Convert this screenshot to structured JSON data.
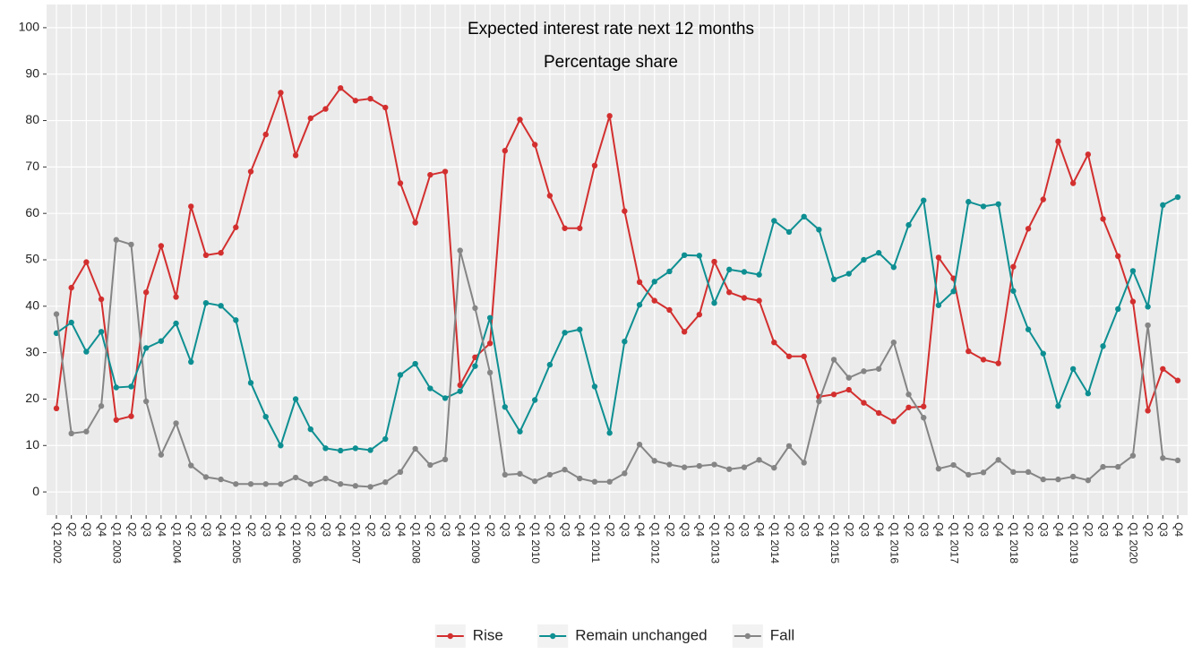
{
  "chart_data": {
    "type": "line",
    "title": "Expected interest rate next 12 months",
    "subtitle": "Percentage share",
    "categories": [
      "Q1 2002",
      "Q2",
      "Q3",
      "Q4",
      "Q1 2003",
      "Q2",
      "Q3",
      "Q4",
      "Q1 2004",
      "Q2",
      "Q3",
      "Q4",
      "Q1 2005",
      "Q2",
      "Q3",
      "Q4",
      "Q1 2006",
      "Q2",
      "Q3",
      "Q4",
      "Q1 2007",
      "Q2",
      "Q3",
      "Q4",
      "Q1 2008",
      "Q2",
      "Q3",
      "Q4",
      "Q1 2009",
      "Q2",
      "Q3",
      "Q4",
      "Q1 2010",
      "Q2",
      "Q3",
      "Q4",
      "Q1 2011",
      "Q2",
      "Q3",
      "Q4",
      "Q1 2012",
      "Q2",
      "Q3",
      "Q4",
      "Q1 2013",
      "Q2",
      "Q3",
      "Q4",
      "Q1 2014",
      "Q2",
      "Q3",
      "Q4",
      "Q1 2015",
      "Q2",
      "Q3",
      "Q4",
      "Q1 2016",
      "Q2",
      "Q3",
      "Q4",
      "Q1 2017",
      "Q2",
      "Q3",
      "Q4",
      "Q1 2018",
      "Q2",
      "Q3",
      "Q4",
      "Q1 2019",
      "Q2",
      "Q3",
      "Q4",
      "Q1 2020",
      "Q2",
      "Q3",
      "Q4"
    ],
    "series": [
      {
        "name": "Rise",
        "color": "#d32f2f",
        "values": [
          18,
          44,
          49.5,
          41.5,
          15.5,
          16.3,
          43,
          53,
          42,
          61.5,
          51,
          51.5,
          57,
          69,
          77,
          86,
          72.5,
          80.5,
          82.5,
          87,
          84.3,
          84.7,
          82.8,
          66.5,
          58,
          68.3,
          69,
          23,
          29,
          32,
          73.5,
          80.2,
          74.8,
          63.8,
          56.8,
          56.8,
          70.3,
          81,
          60.5,
          45.2,
          41.2,
          39.2,
          34.5,
          38.2,
          49.6,
          43,
          41.8,
          41.2,
          32.2,
          29.2,
          29.2,
          20.5,
          21,
          22,
          19.2,
          17,
          15.2,
          18.2,
          18.4,
          50.5,
          46,
          30.3,
          28.5,
          27.7,
          48.5,
          56.7,
          63,
          75.5,
          66.5,
          72.7,
          58.8,
          50.8,
          41,
          17.5,
          26.5,
          24
        ]
      },
      {
        "name": "Remain unchanged",
        "color": "#0e8f92",
        "values": [
          34.2,
          36.5,
          30.2,
          34.5,
          22.5,
          22.7,
          31,
          32.5,
          36.3,
          28,
          40.7,
          40.1,
          37,
          23.5,
          16.2,
          10,
          20,
          13.5,
          9.4,
          8.9,
          9.4,
          9,
          11.4,
          25.2,
          27.6,
          22.3,
          20.2,
          21.7,
          27.1,
          37.5,
          18.3,
          13,
          19.8,
          27.4,
          34.3,
          35,
          22.7,
          12.7,
          32.4,
          40.3,
          45.3,
          47.5,
          51,
          50.9,
          40.7,
          47.9,
          47.4,
          46.8,
          58.4,
          56,
          59.3,
          56.5,
          45.8,
          47,
          50,
          51.5,
          48.4,
          57.5,
          62.8,
          40.2,
          43.2,
          62.5,
          61.5,
          62,
          43.3,
          35,
          29.8,
          18.5,
          26.5,
          21.2,
          31.4,
          39.4,
          47.6,
          39.9,
          61.8,
          63.5
        ]
      },
      {
        "name": "Fall",
        "color": "#858585",
        "values": [
          38.3,
          12.6,
          13,
          18.5,
          54.3,
          53.3,
          19.5,
          8,
          14.8,
          5.7,
          3.2,
          2.7,
          1.7,
          1.7,
          1.7,
          1.7,
          3.1,
          1.7,
          2.9,
          1.7,
          1.3,
          1.1,
          2.1,
          4.3,
          9.3,
          5.8,
          7,
          52,
          39.6,
          25.7,
          3.7,
          3.9,
          2.3,
          3.7,
          4.8,
          2.9,
          2.2,
          2.2,
          4,
          10.2,
          6.7,
          5.9,
          5.3,
          5.6,
          5.9,
          4.9,
          5.3,
          6.9,
          5.2,
          9.9,
          6.3,
          19.5,
          28.5,
          24.6,
          26,
          26.5,
          32.2,
          21,
          16,
          5,
          5.8,
          3.7,
          4.2,
          6.9,
          4.3,
          4.3,
          2.7,
          2.7,
          3.3,
          2.5,
          5.4,
          5.4,
          7.8,
          35.9,
          7.3,
          6.8
        ]
      }
    ],
    "ylim": [
      -5,
      105
    ],
    "yticks": [
      0,
      10,
      20,
      30,
      40,
      50,
      60,
      70,
      80,
      90,
      100
    ],
    "grid": true,
    "legend": "bottom"
  }
}
